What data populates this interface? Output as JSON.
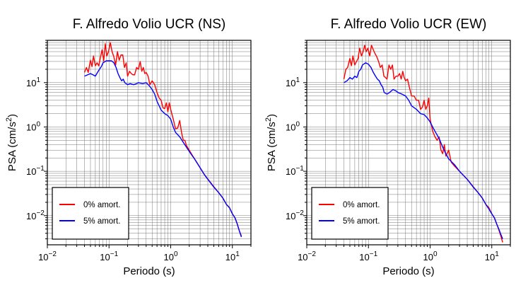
{
  "chart_data": [
    {
      "type": "line",
      "title": "F. Alfredo Volio UCR (NS)",
      "xlabel": "Periodo (s)",
      "ylabel_main": "PSA (cm/s",
      "ylabel_sup": "2",
      "ylabel_tail": ")",
      "xscale": "log",
      "yscale": "log",
      "xlim": [
        0.01,
        20
      ],
      "ylim": [
        0.0022,
        90
      ],
      "grid": true,
      "legend_position": "bottom-left",
      "x_ticks": [
        {
          "base": "10",
          "exp": "−2"
        },
        {
          "base": "10",
          "exp": "−1"
        },
        {
          "base": "10",
          "exp": "0"
        },
        {
          "base": "10",
          "exp": "1"
        }
      ],
      "y_ticks": [
        {
          "base": "10",
          "exp": "−2"
        },
        {
          "base": "10",
          "exp": "−1"
        },
        {
          "base": "10",
          "exp": "0"
        },
        {
          "base": "10",
          "exp": "1"
        }
      ],
      "series": [
        {
          "name": "0% amort.",
          "color": "#ff0000",
          "points": [
            [
              0.04,
              17
            ],
            [
              0.043,
              22
            ],
            [
              0.046,
              17
            ],
            [
              0.05,
              32
            ],
            [
              0.053,
              23
            ],
            [
              0.056,
              40
            ],
            [
              0.06,
              24
            ],
            [
              0.064,
              28
            ],
            [
              0.068,
              24
            ],
            [
              0.072,
              35
            ],
            [
              0.077,
              55
            ],
            [
              0.082,
              31
            ],
            [
              0.087,
              75
            ],
            [
              0.092,
              40
            ],
            [
              0.098,
              50
            ],
            [
              0.105,
              80
            ],
            [
              0.112,
              50
            ],
            [
              0.12,
              38
            ],
            [
              0.128,
              25
            ],
            [
              0.137,
              50
            ],
            [
              0.146,
              32
            ],
            [
              0.156,
              42
            ],
            [
              0.167,
              42
            ],
            [
              0.178,
              22
            ],
            [
              0.19,
              28
            ],
            [
              0.2,
              14
            ],
            [
              0.215,
              18
            ],
            [
              0.23,
              16
            ],
            [
              0.245,
              15
            ],
            [
              0.26,
              15
            ],
            [
              0.28,
              22
            ],
            [
              0.3,
              20
            ],
            [
              0.32,
              30
            ],
            [
              0.34,
              18
            ],
            [
              0.36,
              22
            ],
            [
              0.38,
              16
            ],
            [
              0.4,
              17
            ],
            [
              0.43,
              14
            ],
            [
              0.46,
              9
            ],
            [
              0.5,
              11
            ],
            [
              0.55,
              9
            ],
            [
              0.6,
              6
            ],
            [
              0.65,
              4.5
            ],
            [
              0.7,
              4
            ],
            [
              0.75,
              2.7
            ],
            [
              0.8,
              2.6
            ],
            [
              0.85,
              3.5
            ],
            [
              0.9,
              2.2
            ],
            [
              0.95,
              3.5
            ],
            [
              1.0,
              2.5
            ],
            [
              1.1,
              1.5
            ],
            [
              1.2,
              0.9
            ],
            [
              1.3,
              0.95
            ],
            [
              1.4,
              1.4
            ],
            [
              1.5,
              0.75
            ],
            [
              1.6,
              0.5
            ],
            [
              1.7,
              0.5
            ],
            [
              1.8,
              0.38
            ],
            [
              2.0,
              0.3
            ],
            [
              2.2,
              0.24
            ],
            [
              2.5,
              0.18
            ],
            [
              3,
              0.12
            ],
            [
              3.5,
              0.085
            ],
            [
              4,
              0.067
            ],
            [
              5,
              0.045
            ],
            [
              6,
              0.033
            ],
            [
              7,
              0.025
            ],
            [
              8,
              0.018
            ],
            [
              9,
              0.015
            ],
            [
              10,
              0.011
            ],
            [
              11,
              0.009
            ],
            [
              12,
              0.0065
            ],
            [
              13,
              0.0045
            ],
            [
              14,
              0.0035
            ]
          ]
        },
        {
          "name": "5% amort.",
          "color": "#0000ff",
          "points": [
            [
              0.04,
              14
            ],
            [
              0.045,
              15
            ],
            [
              0.05,
              16
            ],
            [
              0.055,
              15
            ],
            [
              0.06,
              14
            ],
            [
              0.065,
              17
            ],
            [
              0.07,
              20
            ],
            [
              0.075,
              23
            ],
            [
              0.08,
              28
            ],
            [
              0.09,
              31
            ],
            [
              0.1,
              31
            ],
            [
              0.11,
              31
            ],
            [
              0.12,
              28
            ],
            [
              0.13,
              22
            ],
            [
              0.14,
              16
            ],
            [
              0.15,
              13
            ],
            [
              0.16,
              11
            ],
            [
              0.17,
              12
            ],
            [
              0.18,
              10
            ],
            [
              0.2,
              9
            ],
            [
              0.22,
              9.5
            ],
            [
              0.25,
              9
            ],
            [
              0.28,
              9.5
            ],
            [
              0.3,
              10
            ],
            [
              0.35,
              9.5
            ],
            [
              0.4,
              10
            ],
            [
              0.45,
              8.5
            ],
            [
              0.5,
              7
            ],
            [
              0.55,
              5.5
            ],
            [
              0.6,
              3.8
            ],
            [
              0.7,
              2.4
            ],
            [
              0.8,
              2
            ],
            [
              0.9,
              1.8
            ],
            [
              1.0,
              1.5
            ],
            [
              1.1,
              1.0
            ],
            [
              1.2,
              0.75
            ],
            [
              1.4,
              0.6
            ],
            [
              1.6,
              0.45
            ],
            [
              1.8,
              0.35
            ],
            [
              2.0,
              0.28
            ],
            [
              2.5,
              0.18
            ],
            [
              3,
              0.12
            ],
            [
              3.5,
              0.085
            ],
            [
              4,
              0.066
            ],
            [
              5,
              0.044
            ],
            [
              6,
              0.033
            ],
            [
              7,
              0.025
            ],
            [
              8,
              0.018
            ],
            [
              9,
              0.015
            ],
            [
              10,
              0.011
            ],
            [
              11,
              0.009
            ],
            [
              12,
              0.0065
            ],
            [
              13,
              0.0045
            ],
            [
              14,
              0.0033
            ]
          ]
        }
      ]
    },
    {
      "type": "line",
      "title": "F. Alfredo Volio UCR (EW)",
      "xlabel": "Periodo (s)",
      "ylabel_main": "PSA (cm/s",
      "ylabel_sup": "2",
      "ylabel_tail": ")",
      "xscale": "log",
      "yscale": "log",
      "xlim": [
        0.01,
        20
      ],
      "ylim": [
        0.0022,
        90
      ],
      "grid": true,
      "legend_position": "bottom-left",
      "x_ticks": [
        {
          "base": "10",
          "exp": "−2"
        },
        {
          "base": "10",
          "exp": "−1"
        },
        {
          "base": "10",
          "exp": "0"
        },
        {
          "base": "10",
          "exp": "1"
        }
      ],
      "y_ticks": [
        {
          "base": "10",
          "exp": "−2"
        },
        {
          "base": "10",
          "exp": "−1"
        },
        {
          "base": "10",
          "exp": "0"
        },
        {
          "base": "10",
          "exp": "1"
        }
      ],
      "series": [
        {
          "name": "0% amort.",
          "color": "#ff0000",
          "points": [
            [
              0.04,
              12
            ],
            [
              0.043,
              20
            ],
            [
              0.046,
              22
            ],
            [
              0.05,
              35
            ],
            [
              0.053,
              24
            ],
            [
              0.056,
              40
            ],
            [
              0.06,
              25
            ],
            [
              0.064,
              30
            ],
            [
              0.068,
              35
            ],
            [
              0.072,
              60
            ],
            [
              0.077,
              40
            ],
            [
              0.082,
              50
            ],
            [
              0.087,
              70
            ],
            [
              0.092,
              50
            ],
            [
              0.098,
              60
            ],
            [
              0.105,
              40
            ],
            [
              0.112,
              70
            ],
            [
              0.12,
              55
            ],
            [
              0.128,
              45
            ],
            [
              0.137,
              38
            ],
            [
              0.146,
              30
            ],
            [
              0.156,
              22
            ],
            [
              0.167,
              25
            ],
            [
              0.178,
              14
            ],
            [
              0.19,
              13
            ],
            [
              0.2,
              12
            ],
            [
              0.215,
              25
            ],
            [
              0.23,
              20
            ],
            [
              0.245,
              25
            ],
            [
              0.26,
              12
            ],
            [
              0.28,
              14
            ],
            [
              0.3,
              14
            ],
            [
              0.32,
              16
            ],
            [
              0.34,
              12
            ],
            [
              0.36,
              18
            ],
            [
              0.38,
              13
            ],
            [
              0.4,
              11
            ],
            [
              0.43,
              12
            ],
            [
              0.46,
              8
            ],
            [
              0.5,
              5
            ],
            [
              0.55,
              5
            ],
            [
              0.6,
              4
            ],
            [
              0.65,
              4
            ],
            [
              0.7,
              2.5
            ],
            [
              0.75,
              2.8
            ],
            [
              0.8,
              4
            ],
            [
              0.85,
              2.5
            ],
            [
              0.9,
              3
            ],
            [
              0.95,
              4.5
            ],
            [
              1.0,
              1.5
            ],
            [
              1.1,
              0.8
            ],
            [
              1.2,
              0.6
            ],
            [
              1.3,
              0.5
            ],
            [
              1.4,
              0.6
            ],
            [
              1.5,
              0.3
            ],
            [
              1.6,
              0.25
            ],
            [
              1.7,
              0.4
            ],
            [
              1.8,
              0.22
            ],
            [
              2.0,
              0.3
            ],
            [
              2.2,
              0.16
            ],
            [
              2.5,
              0.13
            ],
            [
              3,
              0.1
            ],
            [
              3.5,
              0.08
            ],
            [
              4,
              0.066
            ],
            [
              5,
              0.045
            ],
            [
              6,
              0.033
            ],
            [
              7,
              0.025
            ],
            [
              8,
              0.018
            ],
            [
              9,
              0.015
            ],
            [
              10,
              0.011
            ],
            [
              11,
              0.009
            ],
            [
              12,
              0.0065
            ],
            [
              13,
              0.0048
            ],
            [
              14,
              0.0035
            ],
            [
              15,
              0.0025
            ]
          ]
        },
        {
          "name": "5% amort.",
          "color": "#0000ff",
          "points": [
            [
              0.04,
              10
            ],
            [
              0.045,
              11
            ],
            [
              0.05,
              13
            ],
            [
              0.055,
              12
            ],
            [
              0.06,
              14
            ],
            [
              0.065,
              13
            ],
            [
              0.07,
              18
            ],
            [
              0.075,
              20
            ],
            [
              0.08,
              25
            ],
            [
              0.09,
              28
            ],
            [
              0.1,
              26
            ],
            [
              0.11,
              22
            ],
            [
              0.12,
              17
            ],
            [
              0.13,
              14
            ],
            [
              0.14,
              12
            ],
            [
              0.15,
              11
            ],
            [
              0.16,
              9
            ],
            [
              0.17,
              8
            ],
            [
              0.18,
              6
            ],
            [
              0.2,
              5.5
            ],
            [
              0.22,
              6
            ],
            [
              0.25,
              7
            ],
            [
              0.28,
              6.5
            ],
            [
              0.3,
              6
            ],
            [
              0.35,
              5.5
            ],
            [
              0.4,
              5
            ],
            [
              0.45,
              4
            ],
            [
              0.5,
              3
            ],
            [
              0.6,
              2.5
            ],
            [
              0.7,
              2
            ],
            [
              0.8,
              1.9
            ],
            [
              0.9,
              1.6
            ],
            [
              1.0,
              1.3
            ],
            [
              1.1,
              1.0
            ],
            [
              1.2,
              0.8
            ],
            [
              1.4,
              0.55
            ],
            [
              1.6,
              0.35
            ],
            [
              1.8,
              0.25
            ],
            [
              2.0,
              0.19
            ],
            [
              2.5,
              0.14
            ],
            [
              3,
              0.1
            ],
            [
              3.5,
              0.08
            ],
            [
              4,
              0.066
            ],
            [
              5,
              0.044
            ],
            [
              6,
              0.033
            ],
            [
              7,
              0.025
            ],
            [
              8,
              0.018
            ],
            [
              9,
              0.014
            ],
            [
              10,
              0.011
            ],
            [
              11,
              0.009
            ],
            [
              12,
              0.0065
            ],
            [
              13,
              0.005
            ],
            [
              14,
              0.0038
            ],
            [
              15,
              0.003
            ]
          ]
        }
      ]
    }
  ]
}
